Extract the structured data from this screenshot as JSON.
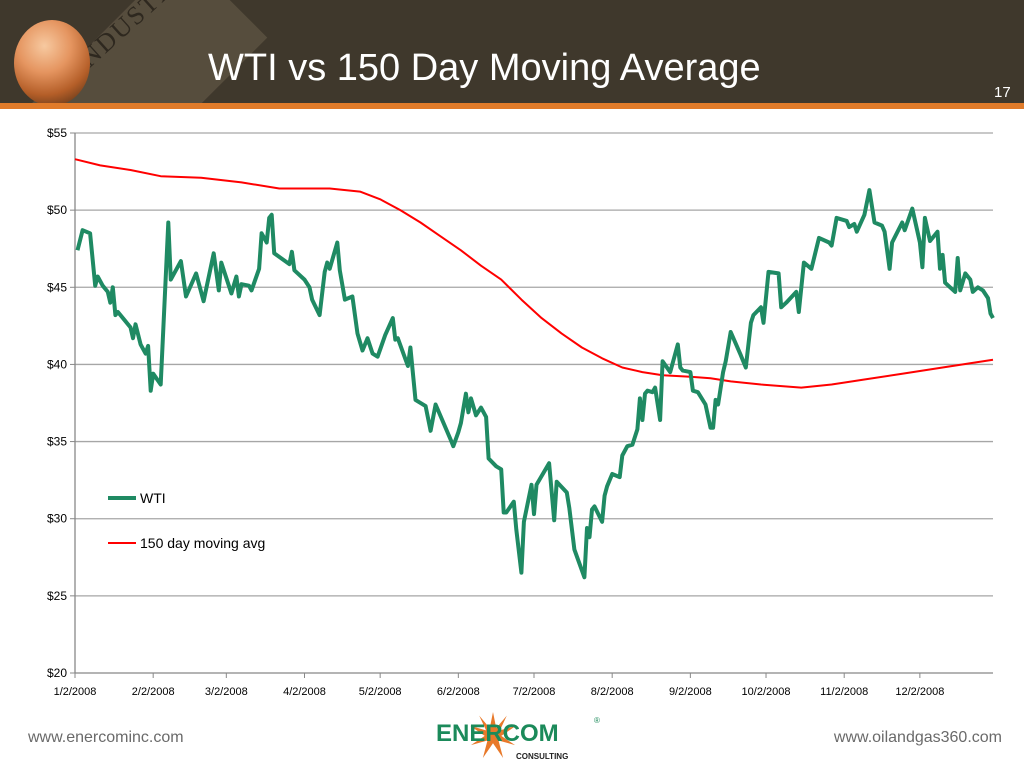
{
  "header": {
    "title": "WTI vs 150 Day Moving Average",
    "page_number": "17",
    "background_text": "INDUSTR"
  },
  "footer": {
    "left_url": "www.enercominc.com",
    "right_url": "www.oilandgas360.com",
    "logo_text": "ENERCOM",
    "logo_subtext": "CONSULTING",
    "logo_mark": "®"
  },
  "colors": {
    "header_bg": "#3f382c",
    "accent": "#e07b2a",
    "wti": "#1f8a63",
    "moving_avg": "#ff0000"
  },
  "chart_data": {
    "type": "line",
    "title": "",
    "xlabel": "",
    "ylabel": "",
    "ylim": [
      20,
      55
    ],
    "xlim": [
      "1/2/2008",
      "12/31/2008"
    ],
    "grid": true,
    "legend_position": "left",
    "y_ticks": [
      "$20",
      "$25",
      "$30",
      "$35",
      "$40",
      "$45",
      "$50",
      "$55"
    ],
    "x_ticks": [
      "1/2/2008",
      "2/2/2008",
      "3/2/2008",
      "4/2/2008",
      "5/2/2008",
      "6/2/2008",
      "7/2/2008",
      "8/2/2008",
      "9/2/2008",
      "10/2/2008",
      "11/2/2008",
      "12/2/2008"
    ],
    "series": [
      {
        "name": "WTI",
        "color": "#1f8a63",
        "points": [
          [
            "1/3/2008",
            47.4
          ],
          [
            "1/5/2008",
            48.7
          ],
          [
            "1/8/2008",
            48.5
          ],
          [
            "1/10/2008",
            45.1
          ],
          [
            "1/11/2008",
            45.7
          ],
          [
            "1/13/2008",
            45.1
          ],
          [
            "1/15/2008",
            44.7
          ],
          [
            "1/16/2008",
            44.0
          ],
          [
            "1/17/2008",
            45.0
          ],
          [
            "1/18/2008",
            43.2
          ],
          [
            "1/19/2008",
            43.4
          ],
          [
            "1/24/2008",
            42.4
          ],
          [
            "1/25/2008",
            41.7
          ],
          [
            "1/26/2008",
            42.6
          ],
          [
            "1/28/2008",
            41.3
          ],
          [
            "1/30/2008",
            40.7
          ],
          [
            "1/31/2008",
            41.2
          ],
          [
            "2/1/2008",
            38.3
          ],
          [
            "2/2/2008",
            39.4
          ],
          [
            "2/5/2008",
            38.7
          ],
          [
            "2/8/2008",
            49.2
          ],
          [
            "2/9/2008",
            45.5
          ],
          [
            "2/13/2008",
            46.7
          ],
          [
            "2/15/2008",
            44.4
          ],
          [
            "2/19/2008",
            45.9
          ],
          [
            "2/22/2008",
            44.1
          ],
          [
            "2/26/2008",
            47.2
          ],
          [
            "2/28/2008",
            44.8
          ],
          [
            "2/29/2008",
            46.6
          ],
          [
            "3/4/2008",
            44.6
          ],
          [
            "3/6/2008",
            45.7
          ],
          [
            "3/7/2008",
            44.4
          ],
          [
            "3/8/2008",
            45.2
          ],
          [
            "3/11/2008",
            45.1
          ],
          [
            "3/12/2008",
            44.8
          ],
          [
            "3/15/2008",
            46.2
          ],
          [
            "3/16/2008",
            48.5
          ],
          [
            "3/18/2008",
            47.9
          ],
          [
            "3/19/2008",
            49.5
          ],
          [
            "3/20/2008",
            49.7
          ],
          [
            "3/21/2008",
            47.2
          ],
          [
            "3/27/2008",
            46.5
          ],
          [
            "3/28/2008",
            47.3
          ],
          [
            "3/29/2008",
            46.1
          ],
          [
            "4/2/2008",
            45.5
          ],
          [
            "4/4/2008",
            45.0
          ],
          [
            "4/5/2008",
            44.2
          ],
          [
            "4/8/2008",
            43.2
          ],
          [
            "4/10/2008",
            46.0
          ],
          [
            "4/11/2008",
            46.6
          ],
          [
            "4/12/2008",
            46.2
          ],
          [
            "4/15/2008",
            47.9
          ],
          [
            "4/16/2008",
            46.1
          ],
          [
            "4/18/2008",
            44.2
          ],
          [
            "4/21/2008",
            44.4
          ],
          [
            "4/23/2008",
            42.0
          ],
          [
            "4/25/2008",
            40.9
          ],
          [
            "4/27/2008",
            41.7
          ],
          [
            "4/29/2008",
            40.7
          ],
          [
            "5/1/2008",
            40.5
          ],
          [
            "5/4/2008",
            41.9
          ],
          [
            "5/7/2008",
            43.0
          ],
          [
            "5/8/2008",
            41.6
          ],
          [
            "5/9/2008",
            41.7
          ],
          [
            "5/13/2008",
            39.9
          ],
          [
            "5/14/2008",
            41.1
          ],
          [
            "5/16/2008",
            37.7
          ],
          [
            "5/20/2008",
            37.3
          ],
          [
            "5/22/2008",
            35.7
          ],
          [
            "5/24/2008",
            37.4
          ],
          [
            "5/30/2008",
            35.1
          ],
          [
            "5/31/2008",
            34.7
          ],
          [
            "6/2/2008",
            35.6
          ],
          [
            "6/3/2008",
            36.2
          ],
          [
            "6/5/2008",
            38.1
          ],
          [
            "6/6/2008",
            36.9
          ],
          [
            "6/7/2008",
            37.8
          ],
          [
            "6/9/2008",
            36.7
          ],
          [
            "6/11/2008",
            37.2
          ],
          [
            "6/13/2008",
            36.6
          ],
          [
            "6/14/2008",
            33.9
          ],
          [
            "6/17/2008",
            33.4
          ],
          [
            "6/19/2008",
            33.2
          ],
          [
            "6/20/2008",
            30.4
          ],
          [
            "6/21/2008",
            30.4
          ],
          [
            "6/24/2008",
            31.1
          ],
          [
            "6/25/2008",
            29.3
          ],
          [
            "6/27/2008",
            26.5
          ],
          [
            "6/28/2008",
            29.8
          ],
          [
            "7/1/2008",
            32.2
          ],
          [
            "7/2/2008",
            30.3
          ],
          [
            "7/3/2008",
            32.2
          ],
          [
            "7/8/2008",
            33.6
          ],
          [
            "7/10/2008",
            29.9
          ],
          [
            "7/11/2008",
            32.4
          ],
          [
            "7/15/2008",
            31.7
          ],
          [
            "7/16/2008",
            30.7
          ],
          [
            "7/18/2008",
            28.0
          ],
          [
            "7/22/2008",
            26.2
          ],
          [
            "7/23/2008",
            29.4
          ],
          [
            "7/24/2008",
            28.8
          ],
          [
            "7/25/2008",
            30.6
          ],
          [
            "7/26/2008",
            30.8
          ],
          [
            "7/29/2008",
            29.8
          ],
          [
            "7/30/2008",
            31.5
          ],
          [
            "7/31/2008",
            32.1
          ],
          [
            "8/2/2008",
            32.9
          ],
          [
            "8/5/2008",
            32.7
          ],
          [
            "8/6/2008",
            34.1
          ],
          [
            "8/8/2008",
            34.7
          ],
          [
            "8/10/2008",
            34.8
          ],
          [
            "8/12/2008",
            35.8
          ],
          [
            "8/13/2008",
            37.8
          ],
          [
            "8/14/2008",
            36.4
          ],
          [
            "8/15/2008",
            38.1
          ],
          [
            "8/16/2008",
            38.3
          ],
          [
            "8/18/2008",
            38.2
          ],
          [
            "8/19/2008",
            38.5
          ],
          [
            "8/21/2008",
            36.4
          ],
          [
            "8/22/2008",
            40.2
          ],
          [
            "8/25/2008",
            39.5
          ],
          [
            "8/28/2008",
            41.3
          ],
          [
            "8/29/2008",
            39.8
          ],
          [
            "8/30/2008",
            39.6
          ],
          [
            "9/2/2008",
            39.5
          ],
          [
            "9/3/2008",
            38.3
          ],
          [
            "9/5/2008",
            38.2
          ],
          [
            "9/8/2008",
            37.4
          ],
          [
            "9/10/2008",
            35.9
          ],
          [
            "9/11/2008",
            35.9
          ],
          [
            "9/12/2008",
            37.7
          ],
          [
            "9/13/2008",
            37.4
          ],
          [
            "9/15/2008",
            39.5
          ],
          [
            "9/16/2008",
            40.2
          ],
          [
            "9/18/2008",
            42.1
          ],
          [
            "9/22/2008",
            40.6
          ],
          [
            "9/24/2008",
            39.8
          ],
          [
            "9/26/2008",
            42.7
          ],
          [
            "9/27/2008",
            43.2
          ],
          [
            "9/30/2008",
            43.7
          ],
          [
            "10/1/2008",
            42.7
          ],
          [
            "10/3/2008",
            46.0
          ],
          [
            "10/7/2008",
            45.9
          ],
          [
            "10/8/2008",
            43.7
          ],
          [
            "10/10/2008",
            44.0
          ],
          [
            "10/14/2008",
            44.7
          ],
          [
            "10/15/2008",
            43.4
          ],
          [
            "10/17/2008",
            46.6
          ],
          [
            "10/20/2008",
            46.2
          ],
          [
            "10/23/2008",
            48.2
          ],
          [
            "10/27/2008",
            47.9
          ],
          [
            "10/28/2008",
            47.7
          ],
          [
            "10/30/2008",
            49.5
          ],
          [
            "11/3/2008",
            49.3
          ],
          [
            "11/4/2008",
            48.9
          ],
          [
            "11/6/2008",
            49.1
          ],
          [
            "11/7/2008",
            48.6
          ],
          [
            "11/10/2008",
            49.7
          ],
          [
            "11/12/2008",
            51.3
          ],
          [
            "11/14/2008",
            49.2
          ],
          [
            "11/17/2008",
            49.0
          ],
          [
            "11/18/2008",
            48.6
          ],
          [
            "11/20/2008",
            46.2
          ],
          [
            "11/21/2008",
            47.9
          ],
          [
            "11/25/2008",
            49.2
          ],
          [
            "11/26/2008",
            48.7
          ],
          [
            "11/29/2008",
            50.1
          ],
          [
            "12/2/2008",
            47.9
          ],
          [
            "12/3/2008",
            46.3
          ],
          [
            "12/4/2008",
            49.5
          ],
          [
            "12/6/2008",
            48.0
          ],
          [
            "12/9/2008",
            48.6
          ],
          [
            "12/10/2008",
            46.2
          ],
          [
            "12/11/2008",
            47.1
          ],
          [
            "12/12/2008",
            45.3
          ],
          [
            "12/14/2008",
            45.0
          ],
          [
            "12/16/2008",
            44.7
          ],
          [
            "12/17/2008",
            46.9
          ],
          [
            "12/18/2008",
            44.8
          ],
          [
            "12/20/2008",
            45.9
          ],
          [
            "12/22/2008",
            45.5
          ],
          [
            "12/23/2008",
            44.7
          ],
          [
            "12/25/2008",
            45.0
          ],
          [
            "12/27/2008",
            44.8
          ],
          [
            "12/29/2008",
            44.3
          ],
          [
            "12/30/2008",
            43.3
          ],
          [
            "12/31/2008",
            43.0
          ]
        ]
      },
      {
        "name": "150 day moving avg",
        "color": "#ff0000",
        "points": [
          [
            "1/2/2008",
            53.3
          ],
          [
            "1/12/2008",
            52.9
          ],
          [
            "1/24/2008",
            52.6
          ],
          [
            "2/5/2008",
            52.2
          ],
          [
            "2/21/2008",
            52.1
          ],
          [
            "3/8/2008",
            51.8
          ],
          [
            "3/23/2008",
            51.4
          ],
          [
            "4/12/2008",
            51.4
          ],
          [
            "4/24/2008",
            51.2
          ],
          [
            "5/2/2008",
            50.7
          ],
          [
            "5/10/2008",
            50.0
          ],
          [
            "5/18/2008",
            49.2
          ],
          [
            "5/26/2008",
            48.3
          ],
          [
            "6/3/2008",
            47.4
          ],
          [
            "6/11/2008",
            46.4
          ],
          [
            "6/19/2008",
            45.5
          ],
          [
            "6/27/2008",
            44.2
          ],
          [
            "7/5/2008",
            43.0
          ],
          [
            "7/13/2008",
            42.0
          ],
          [
            "7/21/2008",
            41.1
          ],
          [
            "7/29/2008",
            40.4
          ],
          [
            "8/6/2008",
            39.8
          ],
          [
            "8/14/2008",
            39.5
          ],
          [
            "8/22/2008",
            39.3
          ],
          [
            "9/2/2008",
            39.2
          ],
          [
            "9/10/2008",
            39.1
          ],
          [
            "9/18/2008",
            38.9
          ],
          [
            "9/30/2008",
            38.7
          ],
          [
            "10/16/2008",
            38.5
          ],
          [
            "10/28/2008",
            38.7
          ],
          [
            "11/9/2008",
            39.0
          ],
          [
            "11/25/2008",
            39.4
          ],
          [
            "12/11/2008",
            39.8
          ],
          [
            "12/31/2008",
            40.3
          ]
        ]
      }
    ]
  }
}
